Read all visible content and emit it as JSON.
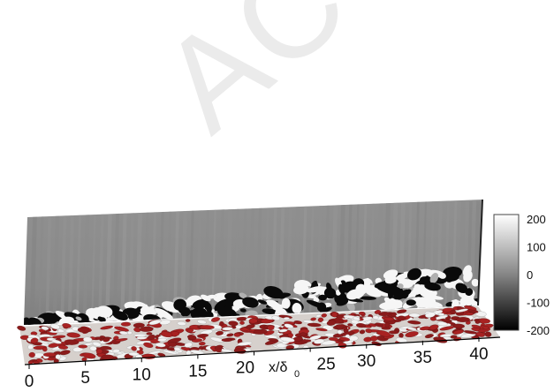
{
  "figure": {
    "watermark": "ACCEPTED",
    "x_axis": {
      "label_main": "x/δ",
      "label_sub": "0",
      "ticks": [
        "0",
        "5",
        "10",
        "15",
        "20",
        "25",
        "30",
        "35",
        "40"
      ]
    },
    "colorbar": {
      "ticks": [
        "200",
        "100",
        "0",
        "-100",
        "-200"
      ],
      "range": [
        -200,
        200
      ]
    },
    "colors": {
      "plane_gray": "#8c8c8c",
      "vortex_red": "#a82222",
      "vortex_white": "#f2f2f2"
    }
  }
}
